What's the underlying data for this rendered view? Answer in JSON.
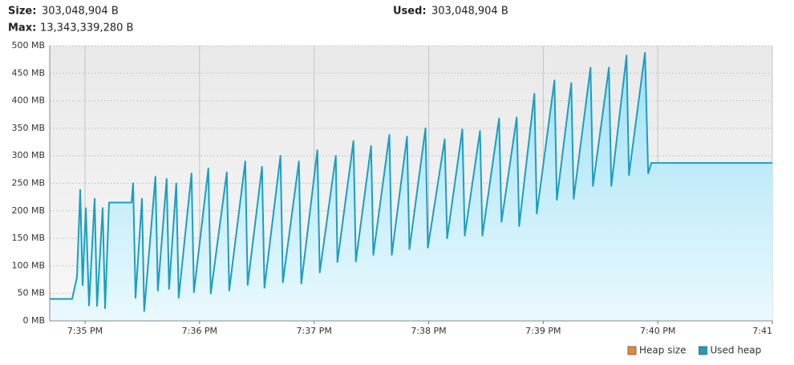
{
  "header": {
    "size_label": "Size:",
    "size": "303,048,904 B",
    "used_label": "Used:",
    "used": "303,048,904 B",
    "max_label": "Max:",
    "max": "13,343,339,280 B"
  },
  "chart_data": {
    "type": "area",
    "xlim": [
      34.692,
      41
    ],
    "xticks": [
      {
        "value": 35,
        "label": "7:35 PM"
      },
      {
        "value": 36,
        "label": "7:36 PM"
      },
      {
        "value": 37,
        "label": "7:37 PM"
      },
      {
        "value": 38,
        "label": "7:38 PM"
      },
      {
        "value": 39,
        "label": "7:39 PM"
      },
      {
        "value": 40,
        "label": "7:40 PM"
      },
      {
        "value": 41,
        "label": "7:41"
      }
    ],
    "ylim": [
      0,
      500
    ],
    "yticks": [
      {
        "value": 0,
        "label": "0 MB"
      },
      {
        "value": 50,
        "label": "50 MB"
      },
      {
        "value": 100,
        "label": "100 MB"
      },
      {
        "value": 150,
        "label": "150 MB"
      },
      {
        "value": 200,
        "label": "200 MB"
      },
      {
        "value": 250,
        "label": "250 MB"
      },
      {
        "value": 300,
        "label": "300 MB"
      },
      {
        "value": 350,
        "label": "350 MB"
      },
      {
        "value": 400,
        "label": "400 MB"
      },
      {
        "value": 450,
        "label": "450 MB"
      },
      {
        "value": 500,
        "label": "500 MB"
      }
    ],
    "grid": true,
    "legend": "bottom-right",
    "series": [
      {
        "name": "Heap size",
        "color": "#e8882e",
        "x": [],
        "values": []
      },
      {
        "name": "Used heap",
        "color": "#1a9fc0",
        "x": [
          34.692,
          34.888,
          34.93,
          34.958,
          34.979,
          35.007,
          35.035,
          35.084,
          35.105,
          35.154,
          35.175,
          35.21,
          35.406,
          35.42,
          35.441,
          35.497,
          35.517,
          35.615,
          35.636,
          35.713,
          35.734,
          35.797,
          35.818,
          35.93,
          35.951,
          36.077,
          36.098,
          36.238,
          36.259,
          36.399,
          36.42,
          36.545,
          36.566,
          36.706,
          36.727,
          36.867,
          36.888,
          37.028,
          37.049,
          37.189,
          37.203,
          37.343,
          37.364,
          37.497,
          37.517,
          37.657,
          37.678,
          37.811,
          37.832,
          37.972,
          37.993,
          38.14,
          38.161,
          38.294,
          38.315,
          38.448,
          38.469,
          38.615,
          38.636,
          38.769,
          38.79,
          38.923,
          38.944,
          39.098,
          39.119,
          39.245,
          39.266,
          39.413,
          39.434,
          39.573,
          39.594,
          39.727,
          39.748,
          39.888,
          39.916,
          39.944,
          41
        ],
        "values": [
          40,
          40,
          80,
          238,
          65,
          205,
          28,
          222,
          27,
          205,
          23,
          215,
          215,
          250,
          42,
          222,
          18,
          262,
          55,
          258,
          58,
          250,
          42,
          268,
          52,
          277,
          50,
          270,
          55,
          290,
          65,
          280,
          60,
          300,
          70,
          290,
          68,
          310,
          88,
          300,
          107,
          327,
          108,
          318,
          120,
          338,
          120,
          335,
          130,
          350,
          133,
          330,
          150,
          348,
          155,
          345,
          155,
          368,
          180,
          370,
          172,
          413,
          195,
          437,
          220,
          432,
          222,
          460,
          245,
          460,
          245,
          482,
          265,
          487,
          268,
          287,
          287
        ]
      }
    ]
  }
}
